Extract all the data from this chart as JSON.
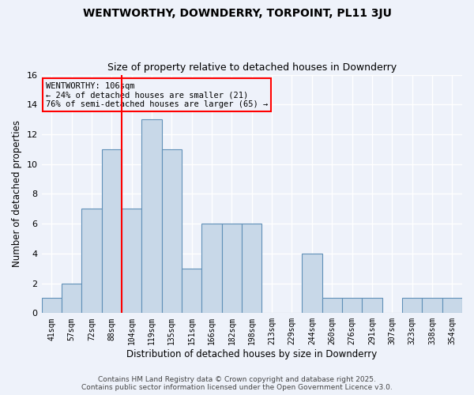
{
  "title1": "WENTWORTHY, DOWNDERRY, TORPOINT, PL11 3JU",
  "title2": "Size of property relative to detached houses in Downderry",
  "xlabel": "Distribution of detached houses by size in Downderry",
  "ylabel": "Number of detached properties",
  "bins": [
    "41sqm",
    "57sqm",
    "72sqm",
    "88sqm",
    "104sqm",
    "119sqm",
    "135sqm",
    "151sqm",
    "166sqm",
    "182sqm",
    "198sqm",
    "213sqm",
    "229sqm",
    "244sqm",
    "260sqm",
    "276sqm",
    "291sqm",
    "307sqm",
    "323sqm",
    "338sqm",
    "354sqm"
  ],
  "counts": [
    1,
    2,
    7,
    11,
    7,
    13,
    11,
    3,
    6,
    6,
    6,
    0,
    0,
    4,
    1,
    1,
    1,
    0,
    1,
    1,
    1
  ],
  "bar_color": "#c8d8e8",
  "bar_edgecolor": "#6090b8",
  "vline_color": "red",
  "vline_bar_index": 4,
  "annotation_text": "WENTWORTHY: 106sqm\n← 24% of detached houses are smaller (21)\n76% of semi-detached houses are larger (65) →",
  "annotation_box_edgecolor": "red",
  "ylim": [
    0,
    16
  ],
  "yticks": [
    0,
    2,
    4,
    6,
    8,
    10,
    12,
    14,
    16
  ],
  "background_color": "#eef2fa",
  "grid_color": "#ffffff",
  "footer1": "Contains HM Land Registry data © Crown copyright and database right 2025.",
  "footer2": "Contains public sector information licensed under the Open Government Licence v3.0."
}
